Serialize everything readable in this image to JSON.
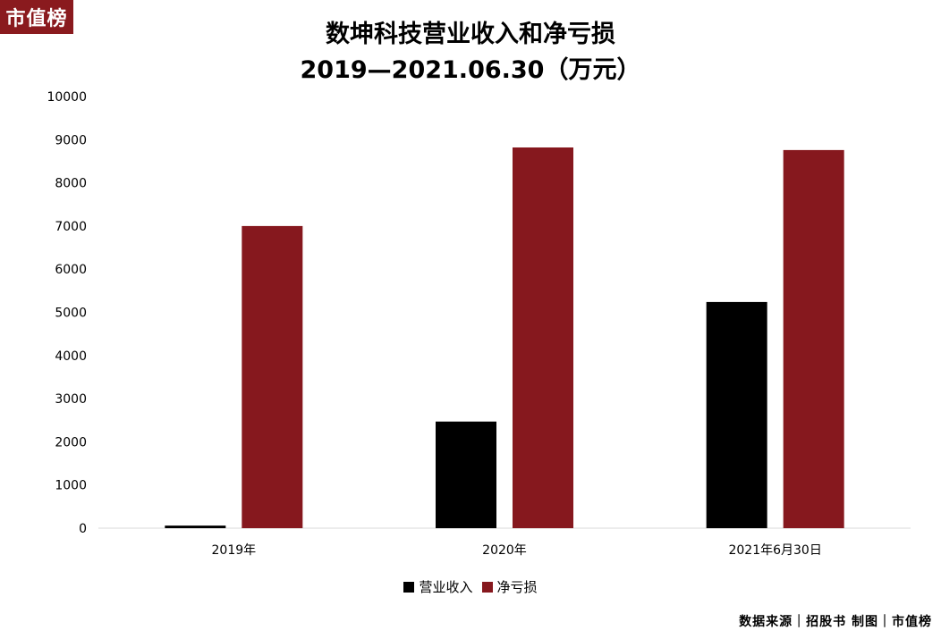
{
  "logo": {
    "text": "市值榜"
  },
  "title": {
    "line1": "数坤科技营业收入和净亏损",
    "line2": "2019—2021.06.30（万元）"
  },
  "footer": {
    "text": "数据来源｜招股书  制图｜市值榜"
  },
  "colors": {
    "revenue": "#000000",
    "net_loss": "#86181e",
    "logo_bg": "#8a1a1e"
  },
  "chart_data": {
    "type": "bar",
    "categories": [
      "2019年",
      "2020年",
      "2021年6月30日"
    ],
    "series": [
      {
        "name": "营业收入",
        "values": [
          60,
          2470,
          5240
        ]
      },
      {
        "name": "净亏损",
        "values": [
          7000,
          8820,
          8760
        ]
      }
    ],
    "ylim": [
      0,
      10000
    ],
    "yticks": [
      0,
      1000,
      2000,
      3000,
      4000,
      5000,
      6000,
      7000,
      8000,
      9000,
      10000
    ],
    "grid": false,
    "legend_position": "bottom"
  }
}
